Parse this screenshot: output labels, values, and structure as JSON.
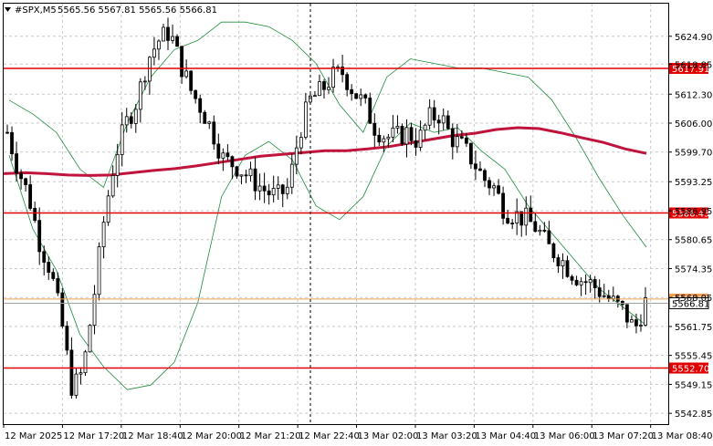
{
  "header": {
    "symbol": "#SPX,M5",
    "ohlc": "5565.56 5567.81 5565.56 5566.81"
  },
  "chart_data": {
    "type": "candlestick",
    "symbol": "#SPX",
    "timeframe": "M5",
    "ylim": [
      5540.5,
      5632.0
    ],
    "y_ticks": [
      "5624.90",
      "5618.85",
      "5612.30",
      "5606.00",
      "5599.70",
      "5593.25",
      "5586.95",
      "5580.65",
      "5574.35",
      "5568.05",
      "5561.75",
      "5555.45",
      "5549.15",
      "5542.85"
    ],
    "x_ticks": [
      "12 Mar 2025",
      "12 Mar 17:20",
      "12 Mar 18:40",
      "12 Mar 20:00",
      "12 Mar 21:20",
      "12 Mar 22:40",
      "13 Mar 02:00",
      "13 Mar 03:20",
      "13 Mar 04:40",
      "13 Mar 06:00",
      "13 Mar 07:20",
      "13 Mar 08:40"
    ],
    "levels": [
      {
        "price": "5617.91",
        "color": "#e00000"
      },
      {
        "price": "5586.45",
        "color": "#e00000"
      },
      {
        "price": "5552.70",
        "color": "#e00000"
      }
    ],
    "current_price": "5566.81",
    "ask_level": "5567.71",
    "grid": true,
    "moving_average": {
      "color": "#c0143c",
      "values": [
        5595.0,
        5595.2,
        5595.0,
        5594.7,
        5594.6,
        5594.7,
        5595.2,
        5595.7,
        5596.1,
        5596.7,
        5597.4,
        5598.1,
        5598.8,
        5599.2,
        5599.6,
        5600.0,
        5600.0,
        5600.4,
        5600.9,
        5601.7,
        5602.5,
        5603.3,
        5603.8,
        5604.6,
        5605.0,
        5604.8,
        5603.9,
        5602.8,
        5601.8,
        5600.4,
        5599.4
      ]
    },
    "bollinger_upper": [
      5611,
      5608,
      5604,
      5596,
      5592,
      5606,
      5616,
      5622,
      5624,
      5628,
      5628,
      5627,
      5624,
      5619,
      5610,
      5604,
      5616,
      5620,
      5619,
      5618,
      5618,
      5617,
      5616,
      5611,
      5603,
      5594,
      5586,
      5579
    ],
    "bollinger_lower": [
      5599,
      5583,
      5574,
      5560,
      5553,
      5548,
      5549,
      5554,
      5567,
      5590,
      5599,
      5602,
      5598,
      5588,
      5585,
      5590,
      5601,
      5606,
      5604,
      5605,
      5600,
      5596,
      5588,
      5582,
      5576,
      5570,
      5566,
      5562
    ],
    "price_path": [
      5604,
      5596,
      5590,
      5580,
      5574,
      5563,
      5548,
      5552,
      5568,
      5586,
      5599,
      5606,
      5611,
      5620,
      5624,
      5626,
      5619,
      5613,
      5609,
      5604,
      5598,
      5597,
      5595,
      5593,
      5591,
      5590,
      5592,
      5604,
      5611,
      5613,
      5616,
      5617,
      5613,
      5610,
      5605,
      5603,
      5603,
      5604,
      5602,
      5607,
      5608,
      5603,
      5601,
      5598,
      5594,
      5592,
      5587,
      5586,
      5585,
      5583,
      5579,
      5577,
      5574,
      5572,
      5571,
      5569,
      5567,
      5565,
      5561,
      5567
    ]
  }
}
